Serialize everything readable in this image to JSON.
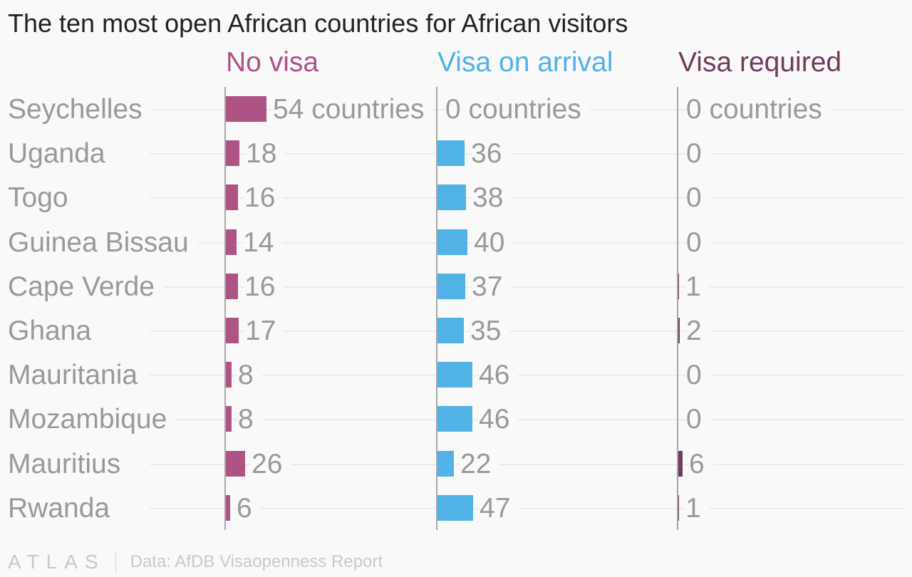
{
  "title": "The ten most open African countries for African visitors",
  "chart_data": {
    "type": "bar",
    "orientation": "horizontal",
    "categories": [
      "Seychelles",
      "Uganda",
      "Togo",
      "Guinea Bissau",
      "Cape Verde",
      "Ghana",
      "Mauritania",
      "Mozambique",
      "Mauritius",
      "Rwanda"
    ],
    "series": [
      {
        "name": "No visa",
        "color": "#ad5485",
        "values": [
          54,
          18,
          16,
          14,
          16,
          17,
          8,
          8,
          26,
          6
        ]
      },
      {
        "name": "Visa on arrival",
        "color": "#51b2e5",
        "values": [
          0,
          36,
          38,
          40,
          37,
          35,
          46,
          46,
          22,
          47
        ]
      },
      {
        "name": "Visa required",
        "color": "#703c5c",
        "values": [
          0,
          0,
          0,
          0,
          1,
          2,
          0,
          0,
          6,
          1
        ]
      }
    ],
    "first_value_suffix": " countries",
    "xlim": [
      0,
      54
    ],
    "grid": true
  },
  "footer": {
    "logo": "ATLAS",
    "source": "Data: AfDB Visaopenness Report"
  }
}
